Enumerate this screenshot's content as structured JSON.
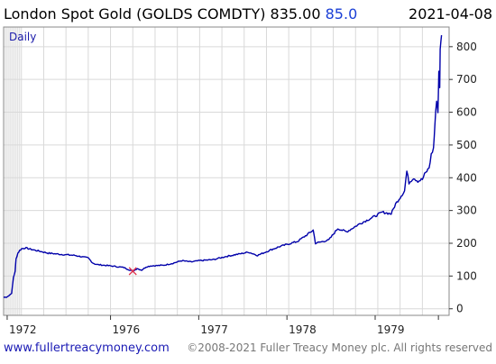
{
  "header": {
    "title": "London Spot Gold (GOLDS COMDTY) 835.00",
    "change_value": "85.0",
    "date": "2021-04-08"
  },
  "footer": {
    "website": "www.fullertreacymoney.com",
    "copyright": "©2008-2021 Fuller Treacy Money plc. All rights reserved"
  },
  "colors": {
    "line": "#0000aa",
    "change": "#1a3fd6",
    "marker": "#e0304a",
    "grid": "#d9d9d9",
    "frame": "#888888"
  },
  "chart_data": {
    "type": "line",
    "frequency_label": "Daily",
    "y_ticks": [
      0,
      100,
      200,
      300,
      400,
      500,
      600,
      700,
      800
    ],
    "ylim": [
      -20,
      860
    ],
    "x_ticks": [
      "1972",
      "1976",
      "1977",
      "1978",
      "1979"
    ],
    "grid": true,
    "marker": {
      "symbol": "×",
      "x_index": 0.29,
      "y": 115
    },
    "series": [
      {
        "x": [
          0,
          0.006,
          0.012,
          0.018,
          0.022,
          0.026,
          0.028,
          0.032,
          0.036,
          0.04,
          0.048,
          0.06,
          0.08,
          0.1,
          0.13,
          0.16,
          0.19,
          0.2,
          0.205,
          0.21,
          0.24,
          0.27,
          0.28,
          0.29,
          0.3,
          0.31,
          0.32,
          0.33,
          0.36,
          0.38,
          0.4,
          0.42,
          0.44,
          0.47,
          0.5,
          0.52,
          0.55,
          0.57,
          0.6,
          0.62,
          0.64,
          0.66,
          0.68,
          0.695,
          0.7,
          0.73,
          0.75,
          0.77,
          0.8,
          0.83,
          0.85,
          0.87,
          0.88,
          0.9,
          0.905,
          0.91,
          0.92,
          0.93,
          0.94,
          0.945,
          0.955,
          0.96,
          0.965,
          0.968,
          0.972,
          0.975,
          0.977,
          0.979,
          0.98,
          0.983
        ],
        "values": [
          35,
          36,
          40,
          48,
          95,
          115,
          152,
          170,
          178,
          183,
          186,
          182,
          176,
          170,
          166,
          163,
          155,
          140,
          137,
          135,
          131,
          126,
          120,
          115,
          123,
          118,
          128,
          131,
          133,
          139,
          147,
          143,
          147,
          150,
          160,
          165,
          173,
          163,
          180,
          190,
          198,
          206,
          225,
          240,
          200,
          210,
          245,
          235,
          260,
          280,
          295,
          290,
          320,
          360,
          420,
          385,
          400,
          390,
          395,
          410,
          430,
          470,
          490,
          560,
          640,
          600,
          720,
          680,
          800,
          835
        ]
      }
    ]
  }
}
